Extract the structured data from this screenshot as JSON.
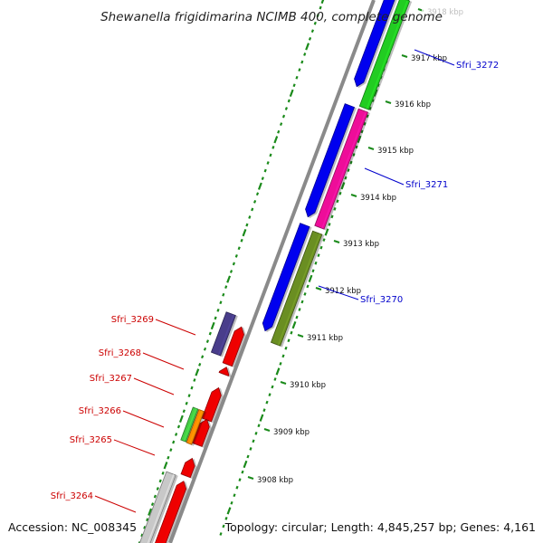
{
  "title": "Shewanella frigidimarina NCIMB 400, complete genome",
  "accession": "Accession: NC_008345",
  "topology": "Topology: circular; Length: 4,845,257 bp; Genes: 4,161",
  "colors": {
    "backbone": "#8a8a8a",
    "tick_dots": "#1a8a1a",
    "plus_label": "#0000cc",
    "minus_label": "#cc0000",
    "gene_blue": "#0000ee",
    "gene_green": "#22cc22",
    "gene_magenta": "#ee1199",
    "gene_olive": "#6b8e23",
    "gene_purple": "#483d8b",
    "gene_red": "#ee0000",
    "gene_orange": "#ff8c00",
    "gene_lightgreen": "#44cc44",
    "gene_grey": "#c8c8c8"
  },
  "ticks": [
    "3918 kbp",
    "3917 kbp",
    "3916 kbp",
    "3915 kbp",
    "3914 kbp",
    "3913 kbp",
    "3912 kbp",
    "3911 kbp",
    "3910 kbp",
    "3909 kbp",
    "3908 kbp"
  ],
  "gene_labels": [
    {
      "text": "Sfri_3272",
      "strand": "plus"
    },
    {
      "text": "Sfri_3271",
      "strand": "plus"
    },
    {
      "text": "Sfri_3270",
      "strand": "plus"
    },
    {
      "text": "Sfri_3269",
      "strand": "minus"
    },
    {
      "text": "Sfri_3268",
      "strand": "minus"
    },
    {
      "text": "Sfri_3267",
      "strand": "minus"
    },
    {
      "text": "Sfri_3266",
      "strand": "minus"
    },
    {
      "text": "Sfri_3265",
      "strand": "minus"
    },
    {
      "text": "Sfri_3264",
      "strand": "minus"
    }
  ],
  "features": [
    {
      "name": "Sfri_3272 CDS",
      "color": "gene_blue",
      "track": "outer"
    },
    {
      "name": "Sfri_3272 region",
      "color": "gene_green",
      "track": "outer2"
    },
    {
      "name": "Sfri_3271 CDS",
      "color": "gene_blue",
      "track": "outer"
    },
    {
      "name": "Sfri_3271 region",
      "color": "gene_magenta",
      "track": "outer2"
    },
    {
      "name": "Sfri_3270 CDS",
      "color": "gene_blue",
      "track": "outer"
    },
    {
      "name": "Sfri_3270 region",
      "color": "gene_olive",
      "track": "outer2"
    },
    {
      "name": "Sfri_3269 region",
      "color": "gene_purple",
      "track": "inner2"
    },
    {
      "name": "Sfri_3269 CDS",
      "color": "gene_red",
      "track": "inner"
    },
    {
      "name": "Sfri_3268 CDS",
      "color": "gene_red",
      "track": "inner"
    },
    {
      "name": "Sfri_3267 CDS",
      "color": "gene_red",
      "track": "inner"
    },
    {
      "name": "Sfri_3266 CDS",
      "color": "gene_red",
      "track": "inner"
    },
    {
      "name": "Sfri_3266 region a",
      "color": "gene_lightgreen",
      "track": "inner2"
    },
    {
      "name": "Sfri_3266 region b",
      "color": "gene_orange",
      "track": "inner2"
    },
    {
      "name": "Sfri_3265 CDS",
      "color": "gene_red",
      "track": "inner"
    },
    {
      "name": "Sfri_3264 CDS",
      "color": "gene_red",
      "track": "inner"
    },
    {
      "name": "Sfri_3264 region",
      "color": "gene_grey",
      "track": "inner2"
    }
  ]
}
